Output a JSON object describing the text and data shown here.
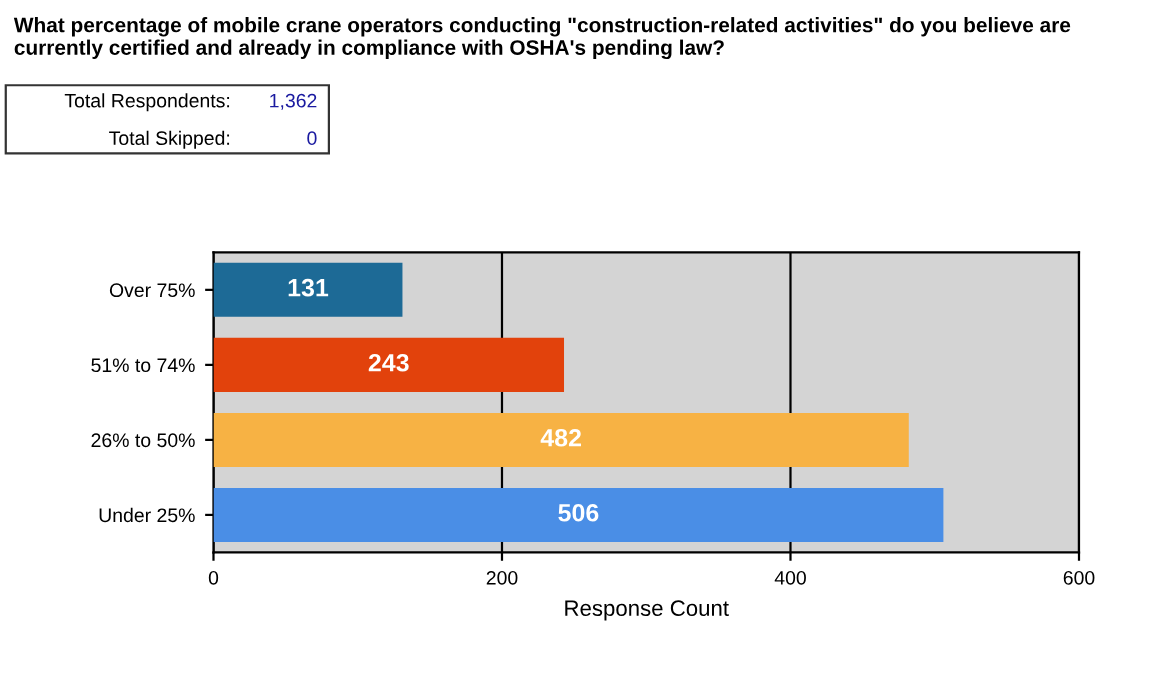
{
  "chart_data": {
    "type": "bar",
    "orientation": "horizontal",
    "title": "What percentage of mobile crane operators conducting \"construction-related activities\" do you believe are currently certified and already in compliance with OSHA's pending law?",
    "categories": [
      "Over 75%",
      "51% to 74%",
      "26% to 50%",
      "Under 25%"
    ],
    "values": [
      131,
      243,
      482,
      506
    ],
    "colors": [
      "#1d6a96",
      "#e2420c",
      "#f7b244",
      "#4a8ee6"
    ],
    "xlabel": "Response Count",
    "xlim": [
      0,
      600
    ],
    "xticks": [
      0,
      200,
      400,
      600
    ],
    "grid": "x",
    "data_labels": true,
    "annotations": [
      "Total Respondents:",
      "1,362",
      "Total Skipped:",
      "0"
    ]
  }
}
